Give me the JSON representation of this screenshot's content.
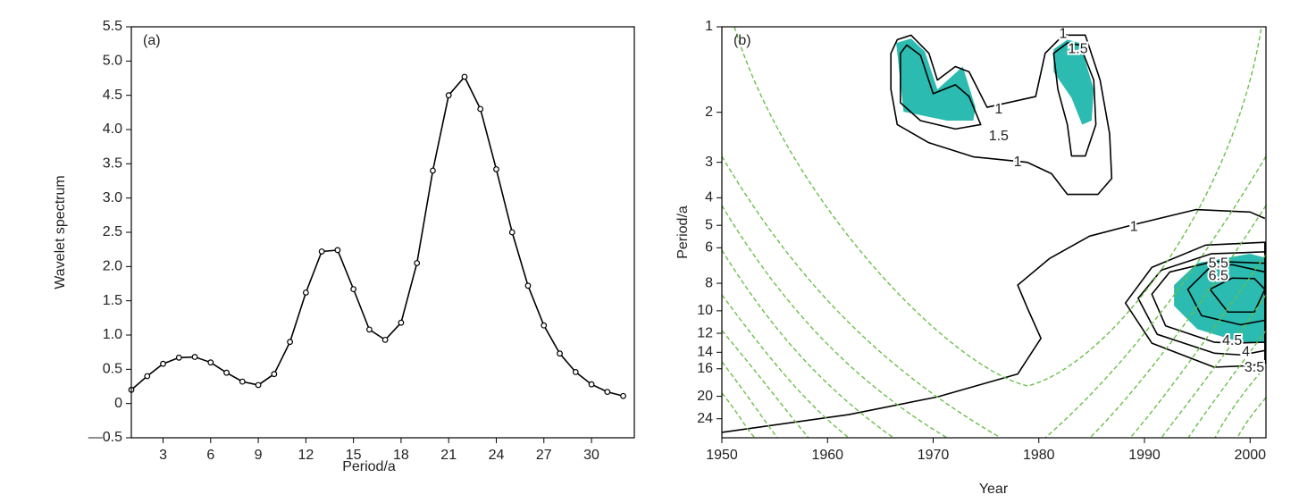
{
  "chart_data": [
    {
      "type": "line",
      "panel_label": "(a)",
      "x_label": "Period/a",
      "y_label": "Wavelet spectrum",
      "x": [
        1,
        2,
        3,
        4,
        5,
        6,
        7,
        8,
        9,
        10,
        11,
        12,
        13,
        14,
        15,
        16,
        17,
        18,
        19,
        20,
        21,
        22,
        23,
        24,
        25,
        26,
        27,
        28,
        29,
        30,
        31,
        32
      ],
      "values": [
        0.2,
        0.4,
        0.58,
        0.67,
        0.68,
        0.6,
        0.45,
        0.32,
        0.27,
        0.43,
        0.9,
        1.62,
        2.22,
        2.24,
        1.67,
        1.08,
        0.93,
        1.18,
        2.05,
        3.4,
        4.5,
        4.77,
        4.3,
        3.42,
        2.5,
        1.72,
        1.14,
        0.73,
        0.46,
        0.28,
        0.17,
        0.11
      ],
      "color": "#000000",
      "xlim": [
        1,
        32.7
      ],
      "xticks": [
        3,
        6,
        9,
        12,
        15,
        18,
        21,
        24,
        27,
        30
      ],
      "ylim": [
        -0.5,
        5.5
      ],
      "yticks": [
        {
          "value": -0.5,
          "label": "—0.5"
        },
        0,
        0.5,
        {
          "value": 1,
          "label": "1.0"
        },
        1.5,
        {
          "value": 2,
          "label": "2.0"
        },
        2.5,
        {
          "value": 3,
          "label": "3.0"
        },
        3.5,
        {
          "value": 4,
          "label": "4.0"
        },
        4.5,
        {
          "value": 5,
          "label": "5.0"
        },
        5.5
      ]
    },
    {
      "type": "contour",
      "panel_label": "(b)",
      "x_label": "Year",
      "y_label": "Period/a",
      "xlim": [
        1950,
        2001.5
      ],
      "xticks": [
        1950,
        1960,
        1970,
        1980,
        1990,
        2000
      ],
      "ylim": [
        1,
        28
      ],
      "ylog": true,
      "y_inverted": true,
      "yticks": [
        1,
        2,
        3,
        4,
        5,
        6,
        8,
        10,
        12,
        14,
        16,
        20,
        24
      ],
      "line_color": "#000000",
      "shade_color": "#2bbbb0",
      "shaded": [
        {
          "x": [
            1966.5,
            1967.9,
            1969.2,
            1970.4,
            1972.8,
            1974.0,
            1973.8,
            1971.3,
            1967.2
          ],
          "y": [
            1.14,
            1.1,
            1.22,
            1.66,
            1.38,
            1.92,
            2.14,
            2.14,
            1.99
          ]
        },
        {
          "x": [
            1981.4,
            1982.7,
            1983.9,
            1985.2,
            1985.0,
            1984.1,
            1983.1,
            1981.4
          ],
          "y": [
            1.2,
            1.11,
            1.14,
            1.66,
            2.14,
            2.21,
            1.78,
            1.44
          ]
        },
        {
          "x": [
            1992.8,
            1995.0,
            2000.0,
            2001.4,
            2001.4,
            1999.1,
            1995.0,
            1992.8
          ],
          "y": [
            8.12,
            6.79,
            6.3,
            6.5,
            12.9,
            12.9,
            11.6,
            9.6
          ]
        }
      ],
      "contours": [
        {
          "closed": true,
          "x": [
            1966.0,
            1966.6,
            1967.9,
            1969.6,
            1970.4,
            1972.1,
            1973.4,
            1975.1,
            1979.7,
            1980.6,
            1982.3,
            1984.4,
            1985.8,
            1986.7,
            1986.9,
            1985.6,
            1982.7,
            1981.2,
            1978.9,
            1973.8,
            1969.6,
            1966.6,
            1966.0
          ],
          "y": [
            1.24,
            1.11,
            1.07,
            1.24,
            1.54,
            1.38,
            1.44,
            1.92,
            1.76,
            1.24,
            1.07,
            1.07,
            1.54,
            2.38,
            3.42,
            3.89,
            3.89,
            3.29,
            3.0,
            2.87,
            2.56,
            2.21,
            1.66
          ]
        },
        {
          "closed": true,
          "x": [
            1966.9,
            1967.5,
            1968.8,
            1970.0,
            1972.1,
            1973.4,
            1974.5,
            1972.1,
            1968.8,
            1966.9
          ],
          "y": [
            1.24,
            1.16,
            1.26,
            1.72,
            1.6,
            1.76,
            2.21,
            2.29,
            2.14,
            1.85
          ]
        },
        {
          "closed": true,
          "x": [
            1981.4,
            1982.7,
            1983.9,
            1985.2,
            1985.4,
            1984.4,
            1983.1,
            1982.7,
            1981.8
          ],
          "y": [
            1.24,
            1.14,
            1.16,
            1.54,
            2.21,
            2.85,
            2.85,
            2.21,
            1.66
          ]
        },
        {
          "closed": false,
          "x": [
            1950,
            1962.0,
            1970.4,
            1978.0,
            1980.2,
            1978.9,
            1978.0,
            1981.0,
            1984.8,
            1989.0,
            1994.9,
            2000.0,
            2001.4
          ],
          "y": [
            26.8,
            23.2,
            20.1,
            16.7,
            12.5,
            9.75,
            8.12,
            6.55,
            5.46,
            4.97,
            4.4,
            4.49,
            4.73
          ]
        },
        {
          "closed": true,
          "x": [
            2000.0,
            1996.6,
            1990.7,
            1988.2,
            1990.7,
            1995.8,
            2001.4,
            2001.4
          ],
          "y": [
            15.6,
            15.8,
            13.0,
            9.39,
            7.03,
            5.87,
            5.74,
            15.3
          ]
        },
        {
          "closed": true,
          "x": [
            1999.2,
            1996.6,
            1991.2,
            1989.4,
            1991.6,
            1996.3,
            2001.4,
            2001.4
          ],
          "y": [
            14.3,
            14.1,
            12.1,
            9.04,
            7.19,
            6.3,
            6.2,
            13.8
          ]
        },
        {
          "closed": true,
          "x": [
            1998.3,
            1996.6,
            1992.0,
            1990.7,
            1992.4,
            1996.6,
            2001.4,
            2001.4
          ],
          "y": [
            13.0,
            12.9,
            11.3,
            8.74,
            7.3,
            6.7,
            6.8,
            12.9
          ]
        },
        {
          "closed": true,
          "x": [
            1998.3,
            2001.4,
            2001.4,
            1999.1,
            1995.4,
            1994.1,
            1996.2
          ],
          "y": [
            6.88,
            7.3,
            10.8,
            11.2,
            10.4,
            8.4,
            7.03
          ]
        },
        {
          "closed": true,
          "x": [
            1998.3,
            2000.4,
            2001.4,
            2000.4,
            1997.9,
            1996.2
          ],
          "y": [
            7.67,
            7.7,
            8.4,
            10.1,
            10.1,
            8.4
          ]
        }
      ],
      "contour_labels": [
        {
          "text": "1",
          "x": 1976.2,
          "y": 1.96
        },
        {
          "text": "1.5",
          "x": 1976.2,
          "y": 2.43
        },
        {
          "text": "1",
          "x": 1978.0,
          "y": 3.0
        },
        {
          "text": "1",
          "x": 1982.3,
          "y": 1.06
        },
        {
          "text": "1.5",
          "x": 1983.7,
          "y": 1.2
        },
        {
          "text": "1",
          "x": 1989.0,
          "y": 5.08
        },
        {
          "text": "5.5",
          "x": 1997.0,
          "y": 6.83
        },
        {
          "text": "6.5",
          "x": 1997.0,
          "y": 7.56
        },
        {
          "text": "4.5",
          "x": 1998.3,
          "y": 12.8
        },
        {
          "text": "4",
          "x": 1999.6,
          "y": 14.0
        },
        {
          "text": "3.5",
          "x": 2000.4,
          "y": 15.9
        }
      ]
    }
  ]
}
